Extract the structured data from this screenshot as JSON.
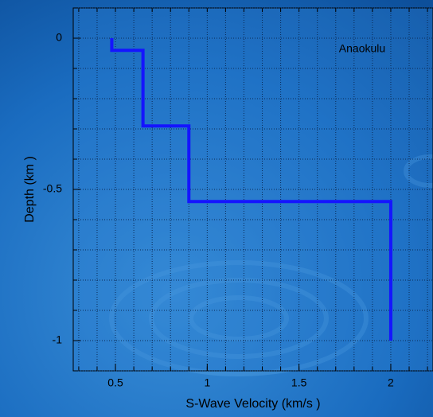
{
  "chart_data": {
    "type": "line",
    "xlabel": "S-Wave Velocity    (km/s )",
    "ylabel": "Depth    (km )",
    "series": [
      {
        "name": "Anaokulu",
        "color": "#1414ff",
        "x": [
          0.48,
          0.48,
          0.65,
          0.65,
          0.9,
          0.9,
          2.0,
          2.0
        ],
        "values": [
          0,
          -0.04,
          -0.04,
          -0.29,
          -0.29,
          -0.54,
          -0.54,
          -1.0
        ]
      }
    ],
    "xlim": [
      0.27,
      2.23
    ],
    "ylim": [
      -1.1,
      0.1
    ],
    "xticks": [
      0.5,
      1,
      1.5,
      2
    ],
    "yticks": [
      0,
      -0.5,
      -1
    ],
    "xminorticks": [
      0.3,
      0.4,
      0.5,
      0.6,
      0.7,
      0.8,
      0.9,
      1.0,
      1.1,
      1.2,
      1.3,
      1.4,
      1.5,
      1.6,
      1.7,
      1.8,
      1.9,
      2.0,
      2.1,
      2.2
    ],
    "yminorticks": [
      0.1,
      0,
      -0.1,
      -0.2,
      -0.3,
      -0.4,
      -0.5,
      -0.6,
      -0.7,
      -0.8,
      -0.9,
      -1.0,
      -1.1
    ],
    "grid": true
  }
}
